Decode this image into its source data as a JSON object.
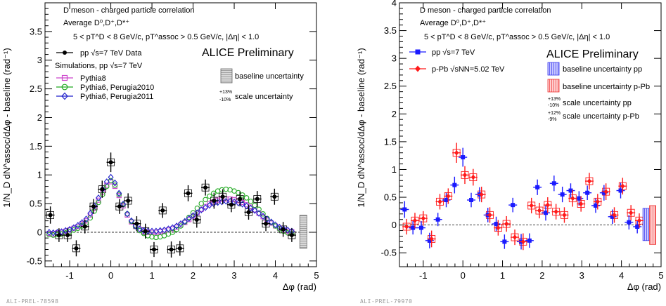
{
  "chart_data": [
    {
      "type": "scatter",
      "xlabel": "Δφ (rad)",
      "ylabel": "1/N_D dN^assoc/dΔφ - baseline (rad⁻¹)",
      "xlim": [
        -1.6,
        5.0
      ],
      "ylim": [
        -0.6,
        4.0
      ],
      "xticks": [
        -1,
        0,
        1,
        2,
        3,
        4,
        5
      ],
      "xtick_labels": [
        "-1",
        "0",
        "1",
        "2",
        "3",
        "4",
        "5"
      ],
      "yticks": [
        -0.5,
        0,
        0.5,
        1,
        1.5,
        2,
        2.5,
        3,
        3.5
      ],
      "ytick_labels": [
        "-0.5",
        "0",
        "0.5",
        "1",
        "1.5",
        "2",
        "2.5",
        "3",
        "3.5"
      ],
      "header_lines": [
        "D meson  - charged particle correlation",
        "Average D⁰,D⁺,D*⁺",
        "5 < pT^D < 8 GeV/c, pT^assoc > 0.5 GeV/c, |Δη| < 1.0"
      ],
      "preliminary_label": "ALICE Preliminary",
      "watermark": "ALI-PREL-78598",
      "legend": {
        "data_label": "pp √s=7 TeV Data",
        "sim_header": "Simulations, pp √s=7 TeV",
        "entries": [
          "Pythia8",
          "Pythia6, Perugia2010",
          "Pythia6, Perugia2011"
        ]
      },
      "uncertainty_legend": {
        "baseline": "baseline uncertainty",
        "scale": "scale uncertainty",
        "scale_up": "+13%",
        "scale_down": "-10%"
      },
      "series": [
        {
          "name": "pp √s=7 TeV Data",
          "color": "#000000",
          "x": [
            -1.47,
            -1.26,
            -1.05,
            -0.84,
            -0.63,
            -0.42,
            -0.21,
            0.0,
            0.21,
            0.42,
            0.63,
            0.84,
            1.05,
            1.26,
            1.47,
            1.68,
            1.88,
            2.09,
            2.3,
            2.51,
            2.72,
            2.93,
            3.14,
            3.35,
            3.56,
            3.77,
            3.98,
            4.19,
            4.4
          ],
          "y": [
            0.3,
            -0.05,
            -0.05,
            -0.28,
            0.1,
            0.45,
            0.75,
            1.22,
            0.45,
            0.55,
            0.15,
            0.02,
            -0.3,
            0.38,
            -0.3,
            -0.28,
            0.68,
            0.22,
            0.78,
            0.55,
            0.62,
            0.48,
            0.58,
            0.35,
            0.58,
            0.15,
            0.62,
            0.05,
            -0.05
          ],
          "yerr": [
            0.15,
            0.12,
            0.12,
            0.14,
            0.12,
            0.13,
            0.15,
            0.17,
            0.13,
            0.13,
            0.13,
            0.13,
            0.13,
            0.13,
            0.14,
            0.13,
            0.14,
            0.14,
            0.14,
            0.14,
            0.13,
            0.13,
            0.13,
            0.13,
            0.14,
            0.13,
            0.14,
            0.13,
            0.12
          ]
        },
        {
          "name": "Pythia8",
          "color": "#cc44cc",
          "x": [
            -1.5,
            -1.4,
            -1.3,
            -1.2,
            -1.1,
            -1.0,
            -0.9,
            -0.8,
            -0.7,
            -0.6,
            -0.5,
            -0.4,
            -0.3,
            -0.2,
            -0.1,
            0.0,
            0.1,
            0.2,
            0.3,
            0.4,
            0.5,
            0.6,
            0.7,
            0.8,
            0.9,
            1.0,
            1.1,
            1.2,
            1.3,
            1.4,
            1.5,
            1.6,
            1.7,
            1.8,
            1.9,
            2.0,
            2.1,
            2.2,
            2.3,
            2.4,
            2.5,
            2.6,
            2.7,
            2.8,
            2.9,
            3.0,
            3.1,
            3.2,
            3.3,
            3.4,
            3.5,
            3.6,
            3.7,
            3.8,
            3.9,
            4.0,
            4.1,
            4.2,
            4.3,
            4.4
          ],
          "y": [
            -0.02,
            -0.03,
            -0.01,
            0.0,
            0.02,
            0.04,
            0.07,
            0.1,
            0.15,
            0.2,
            0.3,
            0.42,
            0.56,
            0.7,
            0.82,
            0.88,
            0.8,
            0.64,
            0.46,
            0.3,
            0.18,
            0.1,
            0.05,
            0.02,
            0.0,
            0.0,
            0.0,
            0.01,
            0.02,
            0.04,
            0.06,
            0.09,
            0.13,
            0.17,
            0.22,
            0.28,
            0.34,
            0.4,
            0.45,
            0.5,
            0.53,
            0.56,
            0.57,
            0.58,
            0.58,
            0.57,
            0.55,
            0.52,
            0.48,
            0.44,
            0.39,
            0.33,
            0.27,
            0.21,
            0.16,
            0.11,
            0.07,
            0.04,
            0.02,
            0.01
          ]
        },
        {
          "name": "Pythia6, Perugia2010",
          "color": "#22aa22",
          "x": [
            -1.5,
            -1.4,
            -1.3,
            -1.2,
            -1.1,
            -1.0,
            -0.9,
            -0.8,
            -0.7,
            -0.6,
            -0.5,
            -0.4,
            -0.3,
            -0.2,
            -0.1,
            0.0,
            0.1,
            0.2,
            0.3,
            0.4,
            0.5,
            0.6,
            0.7,
            0.8,
            0.9,
            1.0,
            1.1,
            1.2,
            1.3,
            1.4,
            1.5,
            1.6,
            1.7,
            1.8,
            1.9,
            2.0,
            2.1,
            2.2,
            2.3,
            2.4,
            2.5,
            2.6,
            2.7,
            2.8,
            2.9,
            3.0,
            3.1,
            3.2,
            3.3,
            3.4,
            3.5,
            3.6,
            3.7,
            3.8,
            3.9,
            4.0,
            4.1,
            4.2,
            4.3,
            4.4
          ],
          "y": [
            -0.04,
            -0.05,
            -0.04,
            -0.03,
            -0.01,
            0.01,
            0.04,
            0.07,
            0.11,
            0.16,
            0.25,
            0.37,
            0.52,
            0.66,
            0.8,
            0.9,
            0.82,
            0.66,
            0.48,
            0.32,
            0.19,
            0.1,
            0.03,
            -0.02,
            -0.06,
            -0.08,
            -0.09,
            -0.08,
            -0.06,
            -0.03,
            0.0,
            0.05,
            0.11,
            0.18,
            0.26,
            0.34,
            0.42,
            0.5,
            0.57,
            0.63,
            0.68,
            0.72,
            0.74,
            0.75,
            0.74,
            0.72,
            0.69,
            0.65,
            0.6,
            0.54,
            0.47,
            0.4,
            0.32,
            0.24,
            0.17,
            0.11,
            0.06,
            0.02,
            -0.01,
            -0.03
          ]
        },
        {
          "name": "Pythia6, Perugia2011",
          "color": "#2222cc",
          "x": [
            -1.5,
            -1.4,
            -1.3,
            -1.2,
            -1.1,
            -1.0,
            -0.9,
            -0.8,
            -0.7,
            -0.6,
            -0.5,
            -0.4,
            -0.3,
            -0.2,
            -0.1,
            0.0,
            0.1,
            0.2,
            0.3,
            0.4,
            0.5,
            0.6,
            0.7,
            0.8,
            0.9,
            1.0,
            1.1,
            1.2,
            1.3,
            1.4,
            1.5,
            1.6,
            1.7,
            1.8,
            1.9,
            2.0,
            2.1,
            2.2,
            2.3,
            2.4,
            2.5,
            2.6,
            2.7,
            2.8,
            2.9,
            3.0,
            3.1,
            3.2,
            3.3,
            3.4,
            3.5,
            3.6,
            3.7,
            3.8,
            3.9,
            4.0,
            4.1,
            4.2,
            4.3,
            4.4
          ],
          "y": [
            0.0,
            -0.01,
            0.0,
            0.01,
            0.03,
            0.05,
            0.08,
            0.12,
            0.17,
            0.23,
            0.33,
            0.46,
            0.6,
            0.75,
            0.88,
            0.96,
            0.86,
            0.68,
            0.49,
            0.32,
            0.2,
            0.11,
            0.06,
            0.03,
            0.02,
            0.02,
            0.02,
            0.03,
            0.04,
            0.06,
            0.08,
            0.11,
            0.15,
            0.19,
            0.24,
            0.29,
            0.34,
            0.39,
            0.43,
            0.47,
            0.5,
            0.52,
            0.53,
            0.54,
            0.54,
            0.53,
            0.51,
            0.49,
            0.46,
            0.42,
            0.38,
            0.33,
            0.28,
            0.23,
            0.18,
            0.13,
            0.09,
            0.06,
            0.04,
            0.02
          ]
        }
      ],
      "baseline_uncertainty": [
        0.3,
        -0.28
      ],
      "scale_uncertainty": [
        0.13,
        -0.1
      ]
    },
    {
      "type": "scatter",
      "xlabel": "Δφ (rad)",
      "ylabel": "1/N_D dN^assoc/dΔφ - baseline (rad⁻¹)",
      "xlim": [
        -1.6,
        5.0
      ],
      "ylim": [
        -0.75,
        4.0
      ],
      "xticks": [
        -1,
        0,
        1,
        2,
        3,
        4,
        5
      ],
      "xtick_labels": [
        "-1",
        "0",
        "1",
        "2",
        "3",
        "4",
        "5"
      ],
      "yticks": [
        -0.5,
        0,
        0.5,
        1,
        1.5,
        2,
        2.5,
        3,
        3.5,
        4
      ],
      "ytick_labels": [
        "-0.5",
        "0",
        "0.5",
        "1",
        "1.5",
        "2",
        "2.5",
        "3",
        "3.5",
        "4"
      ],
      "header_lines": [
        "D meson  - charged particle correlation",
        "Average D⁰,D⁺,D*⁺",
        "5 < pT^D < 8 GeV/c, pT^assoc > 0.5 GeV/c, |Δη| < 1.0"
      ],
      "preliminary_label": "ALICE Preliminary",
      "watermark": "ALI-PREL-79970",
      "legend": {
        "pp_label": "pp √s=7 TeV",
        "ppb_label": "p-Pb √sNN=5.02 TeV"
      },
      "uncertainty_legend": {
        "baseline_pp": "baseline uncertainty pp",
        "baseline_ppb": "baseline uncertainty p-Pb",
        "scale_pp": "scale uncertainty pp",
        "scale_ppb": "scale uncertainty p-Pb",
        "pp_up": "+13%",
        "pp_down": "-10%",
        "ppb_up": "+12%",
        "ppb_down": "-9%"
      },
      "series": [
        {
          "name": "pp √s=7 TeV",
          "color": "#1a1aff",
          "x": [
            -1.47,
            -1.26,
            -1.05,
            -0.84,
            -0.63,
            -0.42,
            -0.21,
            0.0,
            0.21,
            0.42,
            0.63,
            0.84,
            1.05,
            1.26,
            1.47,
            1.68,
            1.88,
            2.09,
            2.3,
            2.51,
            2.72,
            2.93,
            3.14,
            3.35,
            3.56,
            3.77,
            3.98,
            4.19,
            4.4
          ],
          "y": [
            0.28,
            -0.05,
            -0.05,
            -0.28,
            0.1,
            0.45,
            0.72,
            1.22,
            0.45,
            0.55,
            0.18,
            0.02,
            -0.3,
            0.36,
            -0.3,
            -0.28,
            0.68,
            0.22,
            0.75,
            0.55,
            0.62,
            0.48,
            0.58,
            0.35,
            0.58,
            0.15,
            0.62,
            0.05,
            -0.03
          ],
          "yerr": [
            0.15,
            0.12,
            0.12,
            0.14,
            0.12,
            0.13,
            0.15,
            0.17,
            0.13,
            0.13,
            0.13,
            0.13,
            0.13,
            0.13,
            0.14,
            0.13,
            0.14,
            0.14,
            0.14,
            0.14,
            0.13,
            0.13,
            0.13,
            0.13,
            0.14,
            0.13,
            0.14,
            0.13,
            0.12
          ]
        },
        {
          "name": "p-Pb √sNN=5.02 TeV",
          "color": "#ff1a1a",
          "x": [
            -1.42,
            -1.21,
            -1.0,
            -0.79,
            -0.58,
            -0.37,
            -0.16,
            0.05,
            0.26,
            0.47,
            0.68,
            0.89,
            1.1,
            1.31,
            1.52,
            1.73,
            1.93,
            2.14,
            2.35,
            2.56,
            2.77,
            2.98,
            3.19,
            3.4,
            3.61,
            3.82,
            4.03,
            4.24,
            4.45
          ],
          "y": [
            -0.03,
            0.08,
            0.12,
            -0.25,
            0.42,
            0.52,
            1.3,
            0.9,
            0.86,
            0.55,
            0.18,
            -0.05,
            0.02,
            -0.22,
            -0.3,
            0.35,
            0.26,
            0.36,
            0.24,
            0.18,
            0.48,
            0.38,
            0.79,
            0.42,
            0.6,
            0.18,
            0.7,
            0.22,
            0.08
          ],
          "yerr": [
            0.14,
            0.14,
            0.13,
            0.15,
            0.14,
            0.14,
            0.18,
            0.16,
            0.15,
            0.14,
            0.14,
            0.14,
            0.14,
            0.14,
            0.15,
            0.14,
            0.14,
            0.14,
            0.14,
            0.14,
            0.15,
            0.14,
            0.15,
            0.14,
            0.15,
            0.14,
            0.15,
            0.14,
            0.13
          ]
        }
      ],
      "baseline_uncertainty_pp": [
        0.3,
        -0.28
      ],
      "baseline_uncertainty_ppb": [
        0.35,
        -0.35
      ]
    }
  ]
}
